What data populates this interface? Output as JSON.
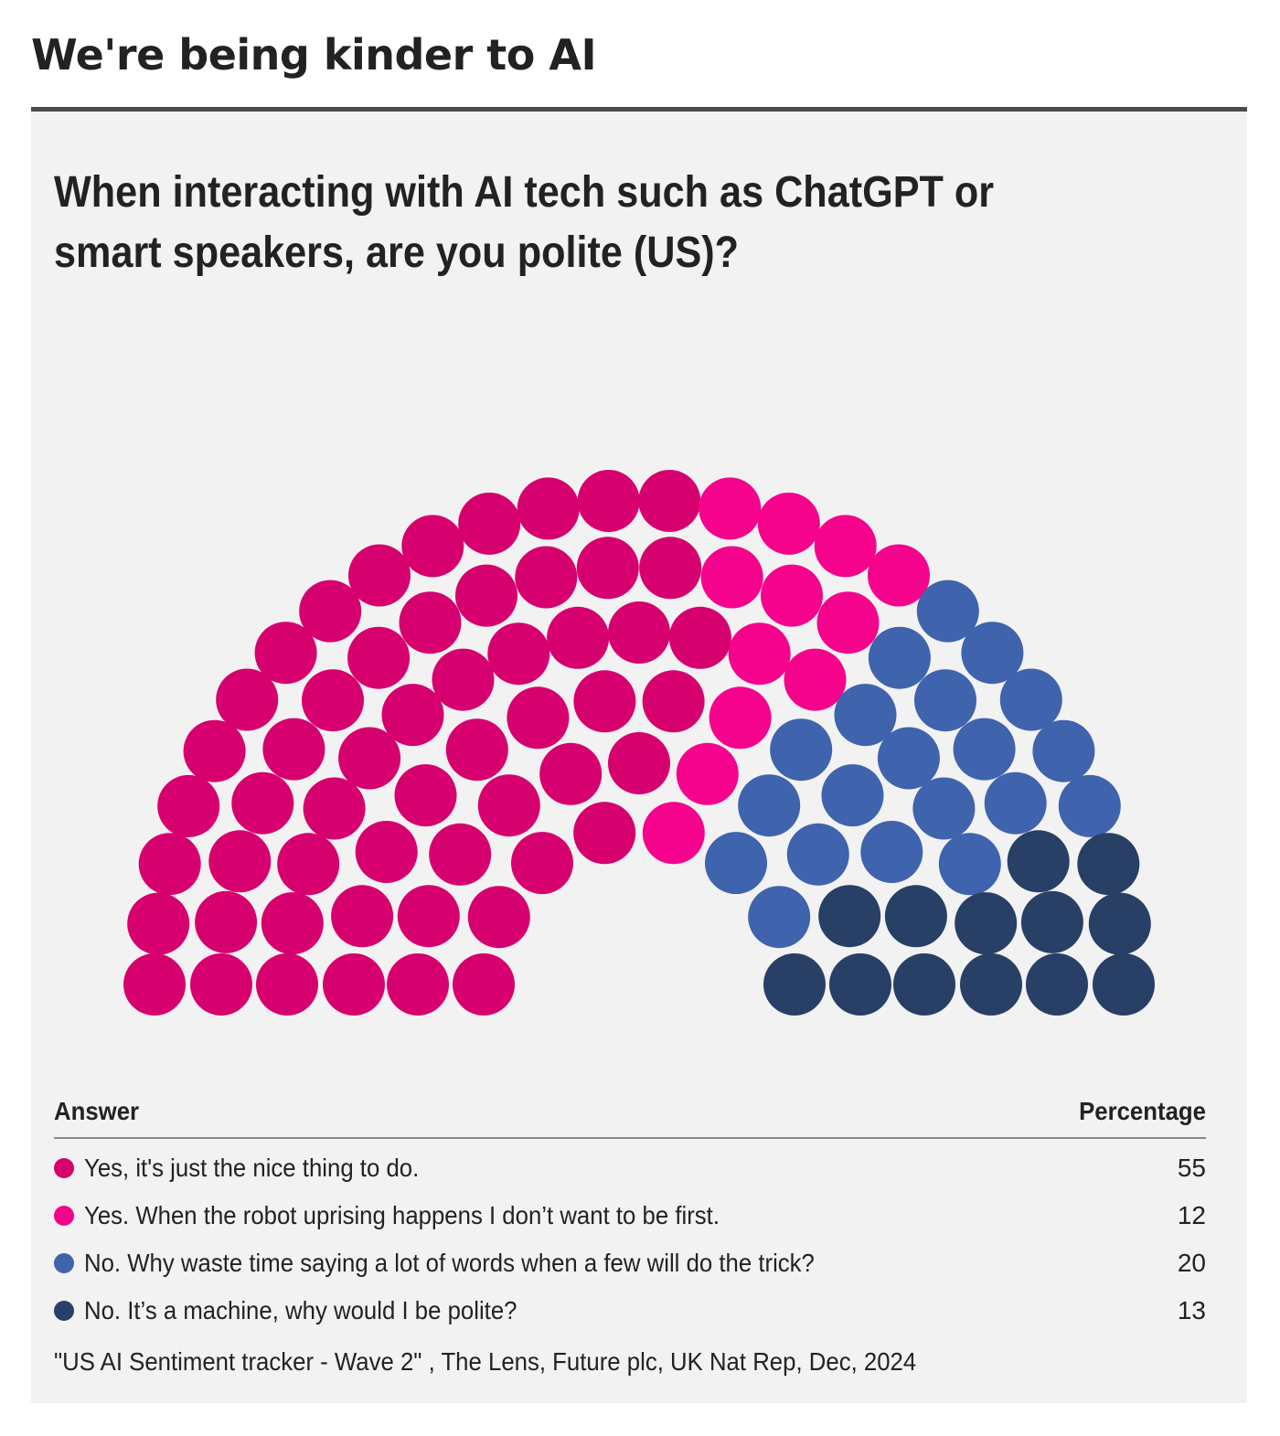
{
  "page_title": "We're being kinder to AI",
  "chart_data": {
    "type": "parliament",
    "title": "When interacting with AI tech such as ChatGPT or smart speakers, are you polite (US)?",
    "total_seats": 100,
    "legend": {
      "answer_header": "Answer",
      "percentage_header": "Percentage"
    },
    "series": [
      {
        "name": "Yes, it's just the nice thing to do.",
        "value": 55,
        "color": "#d6006f"
      },
      {
        "name": "Yes. When the robot uprising happens I don’t want to be first.",
        "value": 12,
        "color": "#f5038c"
      },
      {
        "name": "No. Why waste time saying a lot of words when a few will do the trick?",
        "value": 20,
        "color": "#3f63ad"
      },
      {
        "name": "No. It’s a machine, why would I be polite?",
        "value": 13,
        "color": "#283f66"
      }
    ],
    "source": "\"US AI Sentiment tracker - Wave 2\" , The Lens, Future plc, UK Nat Rep, Dec, 2024"
  }
}
